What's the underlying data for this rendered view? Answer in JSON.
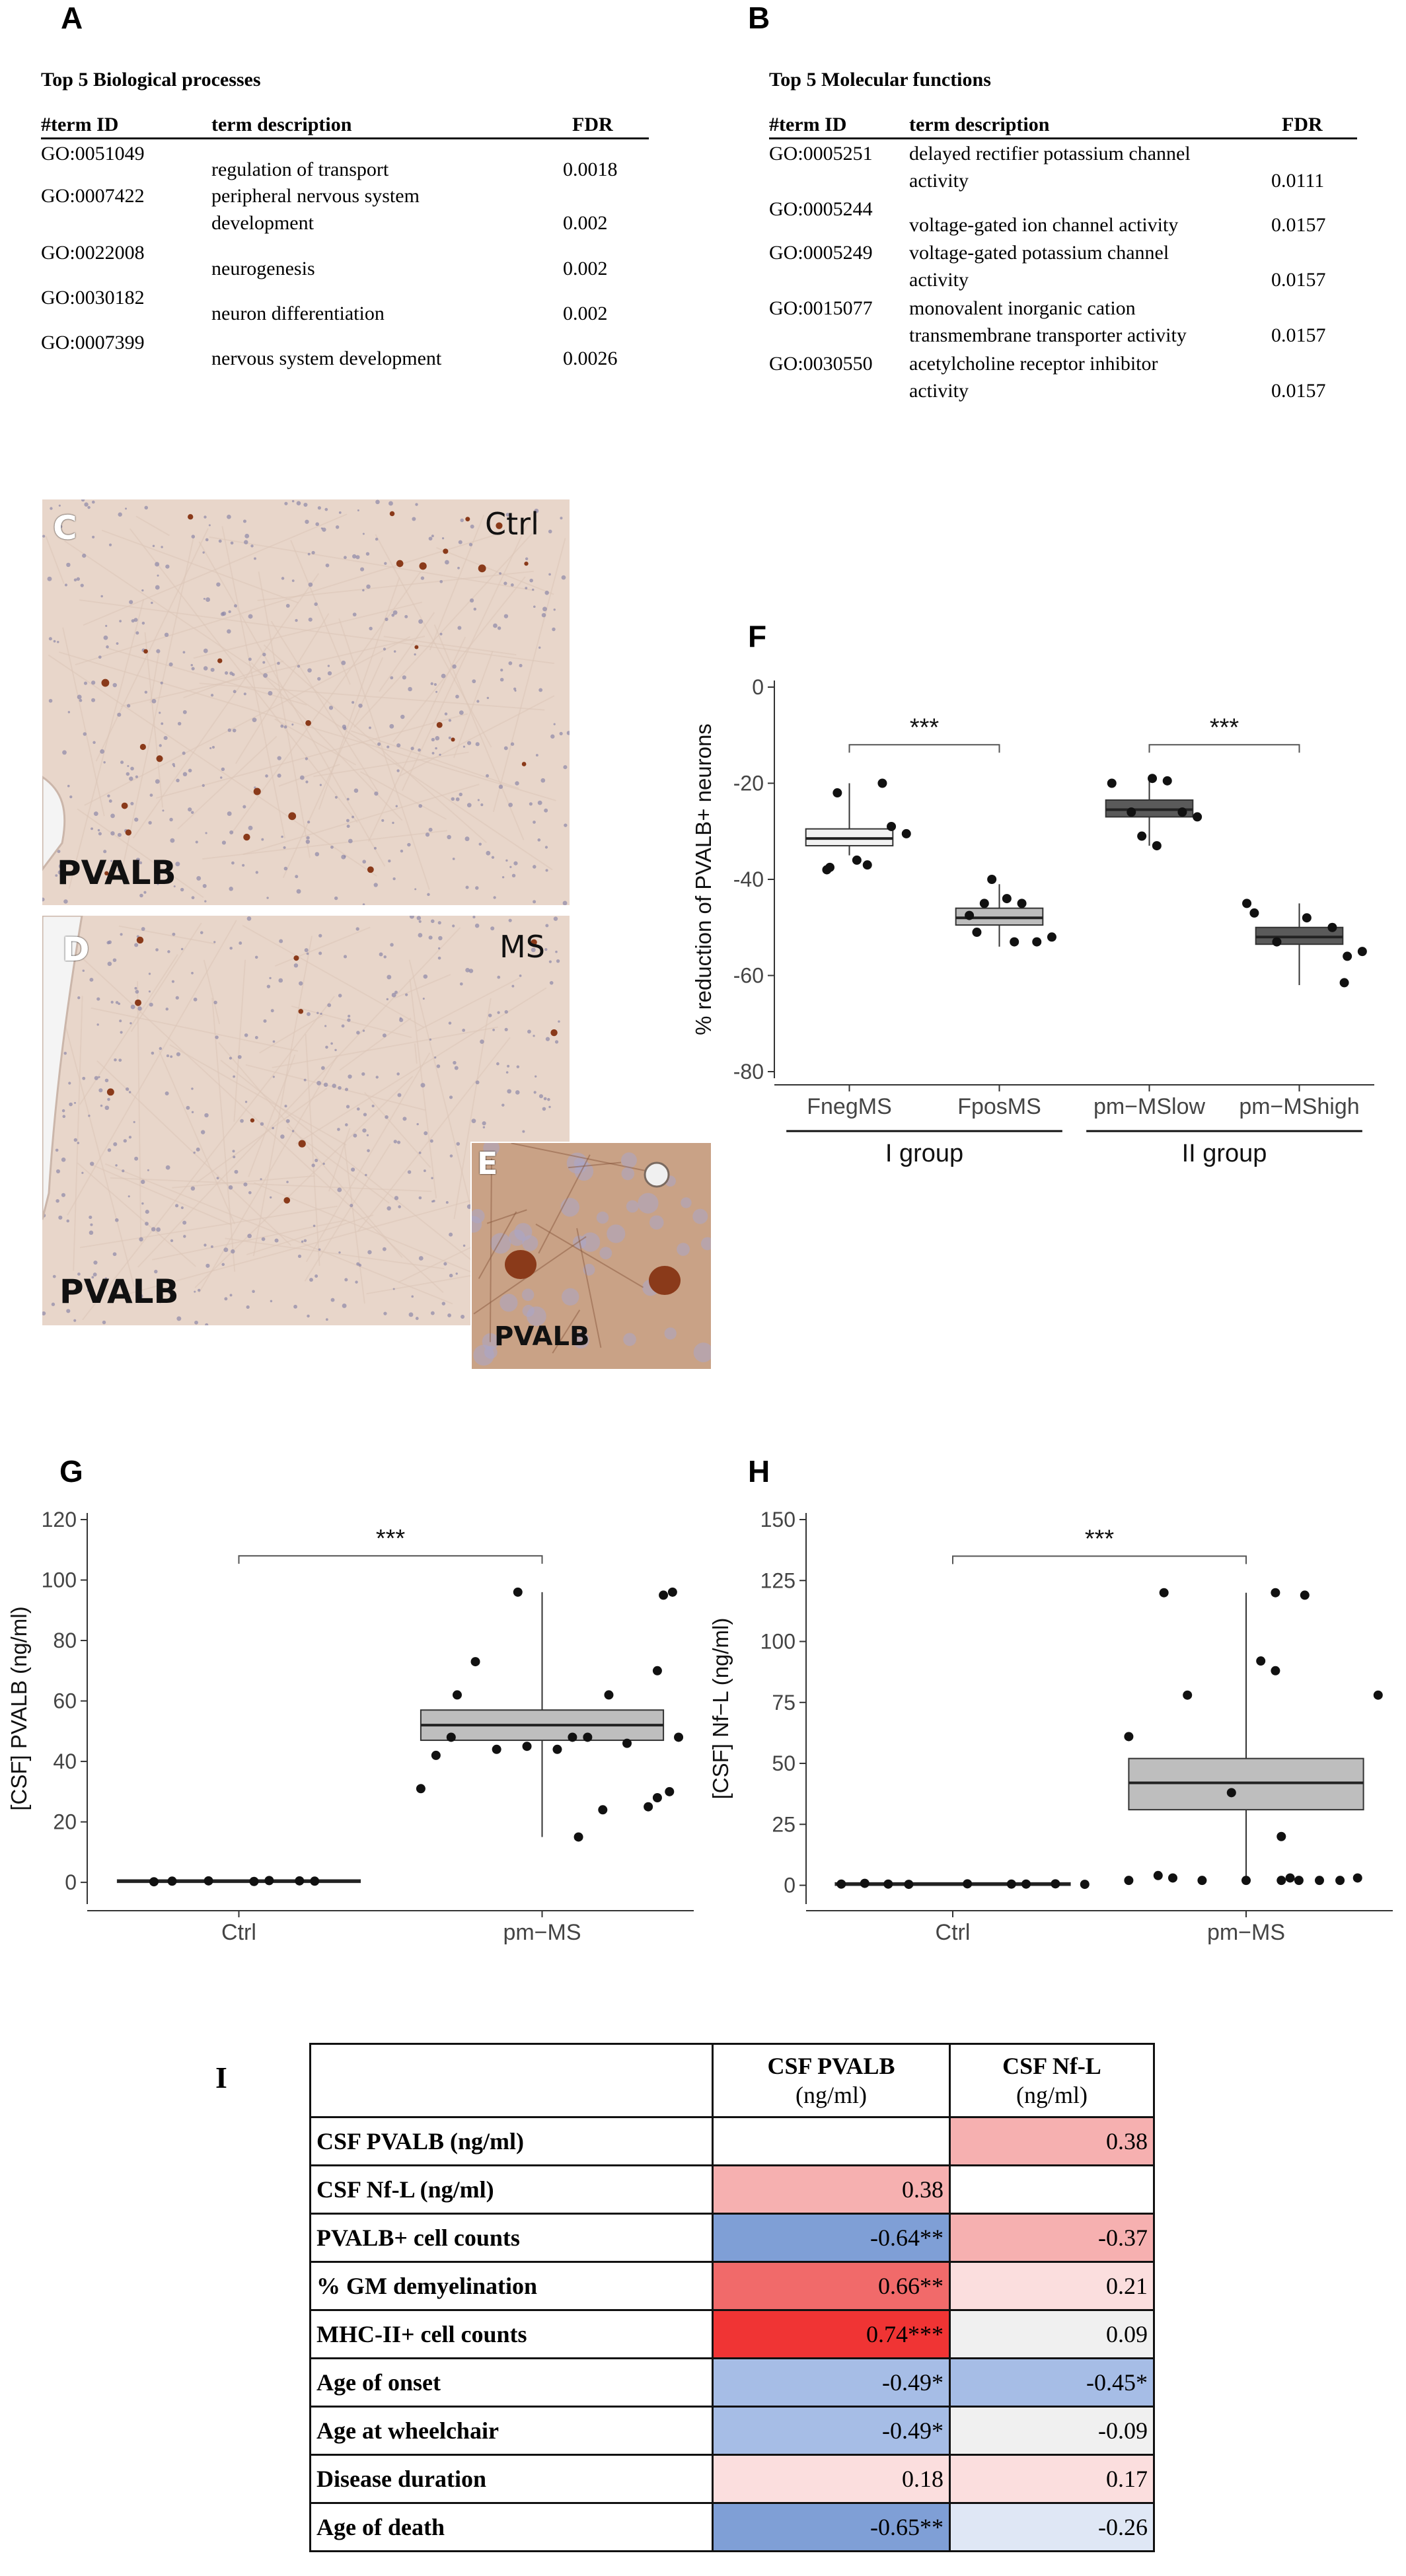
{
  "panel_letters": {
    "A": "A",
    "B": "B",
    "C": "C",
    "D": "D",
    "E": "E",
    "F": "F",
    "G": "G",
    "H": "H",
    "I": "I"
  },
  "panel_a": {
    "title": "Top 5 Biological processes",
    "headers": [
      "#term ID",
      "term description",
      "FDR"
    ],
    "rows": [
      {
        "id": "GO:0051049",
        "desc": [
          "regulation of transport"
        ],
        "fdr": "0.0018"
      },
      {
        "id": "GO:0007422",
        "desc": [
          "peripheral nervous system",
          "development"
        ],
        "fdr": "0.002"
      },
      {
        "id": "GO:0022008",
        "desc": [
          "neurogenesis"
        ],
        "fdr": "0.002"
      },
      {
        "id": "GO:0030182",
        "desc": [
          "neuron differentiation"
        ],
        "fdr": "0.002"
      },
      {
        "id": "GO:0007399",
        "desc": [
          "nervous system development"
        ],
        "fdr": "0.0026"
      }
    ]
  },
  "panel_b": {
    "title": "Top 5 Molecular functions",
    "headers": [
      "#term ID",
      "term description",
      "FDR"
    ],
    "rows": [
      {
        "id": "GO:0005251",
        "desc": [
          "delayed rectifier potassium channel",
          "activity"
        ],
        "fdr": "0.0111"
      },
      {
        "id": "GO:0005244",
        "desc": [
          "voltage-gated ion channel activity"
        ],
        "fdr": "0.0157"
      },
      {
        "id": "GO:0005249",
        "desc": [
          "voltage-gated potassium channel",
          "activity"
        ],
        "fdr": "0.0157"
      },
      {
        "id": "GO:0015077",
        "desc": [
          "monovalent inorganic cation",
          "transmembrane transporter activity"
        ],
        "fdr": "0.0157"
      },
      {
        "id": "GO:0030550",
        "desc": [
          "acetylcholine receptor inhibitor",
          "activity"
        ],
        "fdr": "0.0157"
      }
    ]
  },
  "micrographs": {
    "c": {
      "letter": "C",
      "corner": "Ctrl",
      "stain": "PVALB"
    },
    "d": {
      "letter": "D",
      "corner": "MS",
      "stain": "PVALB"
    },
    "e": {
      "letter": "E",
      "stain": "PVALB"
    }
  },
  "colors": {
    "tissue": "#e8d7cc",
    "stain_brown": "#8a3a1a",
    "box_light": "#f2f2f2",
    "box_mid": "#bdbdbd",
    "box_dark": "#5a5a5a",
    "box_grey": "#bebebe",
    "neg_strong": "#7f9fd6",
    "neg_mid": "#a6bde6",
    "neg_light": "#dfe7f5",
    "pos_strong": "#f03434",
    "pos_mid": "#f16a6a",
    "pos_light": "#f6b0b0",
    "pos_faint": "#fbdede",
    "neutral": "#f0f0f0"
  },
  "chart_data": [
    {
      "panel": "F",
      "type": "box",
      "ylabel": "% reduction of PVALB+ neurons",
      "ylim": [
        -80,
        0
      ],
      "yticks": [
        0,
        -20,
        -40,
        -60,
        -80
      ],
      "categories": [
        "FnegMS",
        "FposMS",
        "pm−MSlow",
        "pm−MShigh"
      ],
      "groups": [
        {
          "label": "I group",
          "categories": [
            "FnegMS",
            "FposMS"
          ]
        },
        {
          "label": "II group",
          "categories": [
            "pm−MSlow",
            "pm−MShigh"
          ]
        }
      ],
      "boxes": [
        {
          "q1": -33,
          "median": -31.5,
          "q3": -29.5,
          "whisker_low": -35,
          "whisker_high": -20,
          "color": "box_light"
        },
        {
          "q1": -49.5,
          "median": -48,
          "q3": -46,
          "whisker_low": -54,
          "whisker_high": -41,
          "color": "box_mid"
        },
        {
          "q1": -27,
          "median": -25.5,
          "q3": -23.5,
          "whisker_low": -33,
          "whisker_high": -19,
          "color": "box_dark"
        },
        {
          "q1": -53.5,
          "median": -52,
          "q3": -50,
          "whisker_low": -62,
          "whisker_high": -45,
          "color": "box_dark"
        }
      ],
      "points": [
        [
          [
            -0.15,
            -38
          ],
          [
            -0.13,
            -37.5
          ],
          [
            0.05,
            -36
          ],
          [
            0.12,
            -37
          ],
          [
            -0.08,
            -22
          ],
          [
            0.22,
            -20
          ],
          [
            0.28,
            -29
          ],
          [
            0.38,
            -30.5
          ]
        ],
        [
          [
            -0.2,
            -47.5
          ],
          [
            -0.1,
            -45
          ],
          [
            -0.05,
            -40
          ],
          [
            0.05,
            -44
          ],
          [
            0.15,
            -45
          ],
          [
            -0.15,
            -51
          ],
          [
            0.1,
            -53
          ],
          [
            0.25,
            -53
          ],
          [
            0.35,
            -52
          ]
        ],
        [
          [
            -0.25,
            -20
          ],
          [
            -0.12,
            -26
          ],
          [
            0.02,
            -19
          ],
          [
            0.12,
            -19.5
          ],
          [
            0.22,
            -26
          ],
          [
            0.32,
            -27
          ],
          [
            -0.05,
            -31
          ],
          [
            0.05,
            -33
          ]
        ],
        [
          [
            -0.35,
            -45
          ],
          [
            -0.3,
            -47
          ],
          [
            -0.15,
            -53
          ],
          [
            0.05,
            -48
          ],
          [
            0.22,
            -50
          ],
          [
            0.32,
            -56
          ],
          [
            0.42,
            -55
          ],
          [
            0.3,
            -61.5
          ]
        ]
      ],
      "significance": [
        {
          "from": "FnegMS",
          "to": "FposMS",
          "label": "***",
          "y": -12
        },
        {
          "from": "pm−MSlow",
          "to": "pm−MShigh",
          "label": "***",
          "y": -12
        }
      ]
    },
    {
      "panel": "G",
      "type": "box",
      "ylabel": "[CSF] PVALB (ng/ml)",
      "ylim": [
        -5,
        120
      ],
      "yticks": [
        0,
        20,
        40,
        60,
        80,
        100,
        120
      ],
      "categories": [
        "Ctrl",
        "pm−MS"
      ],
      "boxes": [
        {
          "q1": 0,
          "median": 0.4,
          "q3": 0.8,
          "whisker_low": 0,
          "whisker_high": 0.8,
          "color": "box_light"
        },
        {
          "q1": 47,
          "median": 52,
          "q3": 57,
          "whisker_low": 15,
          "whisker_high": 96,
          "color": "box_grey"
        }
      ],
      "points": [
        [
          [
            -0.28,
            0.2
          ],
          [
            -0.22,
            0.4
          ],
          [
            -0.1,
            0.5
          ],
          [
            0.05,
            0.3
          ],
          [
            0.1,
            0.6
          ],
          [
            0.2,
            0.5
          ],
          [
            0.25,
            0.4
          ]
        ],
        [
          [
            -0.4,
            31
          ],
          [
            -0.35,
            42
          ],
          [
            -0.3,
            48
          ],
          [
            -0.28,
            62
          ],
          [
            -0.22,
            73
          ],
          [
            -0.15,
            44
          ],
          [
            -0.05,
            45
          ],
          [
            -0.08,
            96
          ],
          [
            0.05,
            44
          ],
          [
            0.1,
            48
          ],
          [
            0.15,
            48
          ],
          [
            0.22,
            62
          ],
          [
            0.28,
            46
          ],
          [
            0.35,
            25
          ],
          [
            0.38,
            28
          ],
          [
            0.42,
            30
          ],
          [
            0.45,
            48
          ],
          [
            0.38,
            70
          ],
          [
            0.4,
            95
          ],
          [
            0.43,
            96
          ],
          [
            0.12,
            15
          ],
          [
            0.2,
            24
          ]
        ]
      ],
      "significance": [
        {
          "from": "Ctrl",
          "to": "pm−MS",
          "label": "***",
          "y": 108
        }
      ]
    },
    {
      "panel": "H",
      "type": "box",
      "ylabel": "[CSF] Nf−L (ng/ml)",
      "ylim": [
        -5,
        150
      ],
      "yticks": [
        0,
        25,
        50,
        75,
        100,
        125,
        150
      ],
      "categories": [
        "Ctrl",
        "pm−MS"
      ],
      "boxes": [
        {
          "q1": 0,
          "median": 0.5,
          "q3": 1,
          "whisker_low": 0,
          "whisker_high": 1,
          "color": "box_light"
        },
        {
          "q1": 31,
          "median": 42,
          "q3": 52,
          "whisker_low": 1,
          "whisker_high": 120,
          "color": "box_grey"
        }
      ],
      "points": [
        [
          [
            -0.38,
            0.5
          ],
          [
            -0.3,
            0.8
          ],
          [
            -0.22,
            0.5
          ],
          [
            -0.15,
            0.4
          ],
          [
            0.05,
            0.6
          ],
          [
            0.2,
            0.5
          ],
          [
            0.25,
            0.5
          ],
          [
            0.35,
            0.6
          ],
          [
            0.45,
            0.4
          ]
        ],
        [
          [
            -0.4,
            61
          ],
          [
            -0.4,
            2
          ],
          [
            -0.3,
            4
          ],
          [
            -0.25,
            3
          ],
          [
            -0.2,
            78
          ],
          [
            -0.15,
            2
          ],
          [
            -0.05,
            38
          ],
          [
            -0.28,
            120
          ],
          [
            0.0,
            2
          ],
          [
            0.05,
            92
          ],
          [
            0.1,
            120
          ],
          [
            0.12,
            20
          ],
          [
            0.1,
            88
          ],
          [
            0.12,
            2
          ],
          [
            0.15,
            3
          ],
          [
            0.18,
            2
          ],
          [
            0.2,
            119
          ],
          [
            0.25,
            2
          ],
          [
            0.32,
            2
          ],
          [
            0.38,
            3
          ],
          [
            0.45,
            78
          ]
        ]
      ],
      "significance": [
        {
          "from": "Ctrl",
          "to": "pm−MS",
          "label": "***",
          "y": 135
        }
      ]
    },
    {
      "panel": "I",
      "type": "table",
      "columns": [
        {
          "name": "CSF PVALB",
          "unit": "(ng/ml)"
        },
        {
          "name": "CSF Nf-L",
          "unit": "(ng/ml)"
        }
      ],
      "rows": [
        {
          "label": "CSF PVALB (ng/ml)",
          "cells": [
            {
              "text": "",
              "color": "#ffffff"
            },
            {
              "text": "0.38",
              "color": "pos_light"
            }
          ]
        },
        {
          "label": "CSF Nf-L (ng/ml)",
          "cells": [
            {
              "text": "0.38",
              "color": "pos_light"
            },
            {
              "text": "",
              "color": "#ffffff"
            }
          ]
        },
        {
          "label": "PVALB+ cell counts",
          "cells": [
            {
              "text": "-0.64**",
              "color": "neg_strong"
            },
            {
              "text": "-0.37",
              "color": "pos_light"
            }
          ]
        },
        {
          "label": "% GM demyelination",
          "cells": [
            {
              "text": "0.66**",
              "color": "pos_mid"
            },
            {
              "text": "0.21",
              "color": "pos_faint"
            }
          ]
        },
        {
          "label": "MHC-II+ cell counts",
          "cells": [
            {
              "text": "0.74***",
              "color": "pos_strong"
            },
            {
              "text": "0.09",
              "color": "neutral"
            }
          ]
        },
        {
          "label": "Age of onset",
          "cells": [
            {
              "text": "-0.49*",
              "color": "neg_mid"
            },
            {
              "text": "-0.45*",
              "color": "neg_mid"
            }
          ]
        },
        {
          "label": "Age at wheelchair",
          "cells": [
            {
              "text": "-0.49*",
              "color": "neg_mid"
            },
            {
              "text": "-0.09",
              "color": "neutral"
            }
          ]
        },
        {
          "label": "Disease duration",
          "cells": [
            {
              "text": "0.18",
              "color": "pos_faint"
            },
            {
              "text": "0.17",
              "color": "pos_faint"
            }
          ]
        },
        {
          "label": "Age of death",
          "cells": [
            {
              "text": "-0.65**",
              "color": "neg_strong"
            },
            {
              "text": "-0.26",
              "color": "neg_light"
            }
          ]
        }
      ]
    }
  ]
}
